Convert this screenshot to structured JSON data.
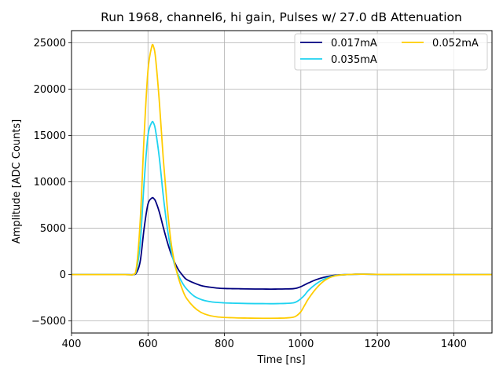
{
  "chart_data": {
    "type": "line",
    "title": "Run 1968, channel6, hi gain, Pulses w/ 27.0 dB Attenuation",
    "xlabel": "Time [ns]",
    "ylabel": "Amplitude [ADC Counts]",
    "xlim": [
      400,
      1500
    ],
    "ylim": [
      -6300,
      26300
    ],
    "xticks": [
      400,
      600,
      800,
      1000,
      1200,
      1400
    ],
    "yticks": [
      -5000,
      0,
      5000,
      10000,
      15000,
      20000,
      25000
    ],
    "ytick_labels": [
      "−5000",
      "0",
      "5000",
      "10000",
      "15000",
      "20000",
      "25000"
    ],
    "grid": true,
    "legend": {
      "placement": "top-right",
      "columns": 2
    },
    "series": [
      {
        "name": "0.017mA",
        "color": "#00007f",
        "x": [
          400,
          540,
          560,
          570,
          580,
          590,
          600,
          610,
          615,
          620,
          630,
          640,
          650,
          660,
          670,
          680,
          690,
          700,
          720,
          740,
          760,
          780,
          800,
          820,
          840,
          860,
          880,
          900,
          920,
          940,
          960,
          980,
          990,
          1000,
          1010,
          1020,
          1040,
          1060,
          1080,
          1100,
          1120,
          1140,
          1160,
          1200,
          1300,
          1400,
          1500
        ],
        "y": [
          0,
          0,
          0,
          200,
          1500,
          5000,
          7600,
          8250,
          8200,
          7900,
          6700,
          5100,
          3600,
          2300,
          1300,
          500,
          -50,
          -500,
          -900,
          -1200,
          -1350,
          -1450,
          -1500,
          -1520,
          -1530,
          -1550,
          -1560,
          -1560,
          -1570,
          -1560,
          -1550,
          -1520,
          -1450,
          -1300,
          -1100,
          -900,
          -550,
          -300,
          -130,
          -40,
          0,
          30,
          40,
          20,
          0,
          0,
          0
        ]
      },
      {
        "name": "0.035mA",
        "color": "#1fd3f0",
        "x": [
          400,
          540,
          560,
          570,
          580,
          590,
          600,
          610,
          615,
          620,
          630,
          640,
          650,
          660,
          670,
          680,
          690,
          700,
          720,
          740,
          760,
          780,
          800,
          820,
          840,
          860,
          880,
          900,
          920,
          940,
          960,
          980,
          990,
          1000,
          1010,
          1020,
          1040,
          1060,
          1080,
          1100,
          1120,
          1140,
          1160,
          1200,
          1300,
          1400,
          1500
        ],
        "y": [
          0,
          0,
          0,
          500,
          3500,
          10000,
          15000,
          16400,
          16300,
          15500,
          12500,
          8500,
          5200,
          2700,
          1000,
          -100,
          -900,
          -1500,
          -2300,
          -2700,
          -2900,
          -3000,
          -3050,
          -3080,
          -3100,
          -3120,
          -3130,
          -3130,
          -3140,
          -3130,
          -3110,
          -3050,
          -2900,
          -2600,
          -2200,
          -1700,
          -1000,
          -500,
          -200,
          -60,
          0,
          30,
          40,
          20,
          0,
          0,
          0
        ]
      },
      {
        "name": "0.052mA",
        "color": "#ffcc00",
        "x": [
          400,
          540,
          560,
          570,
          580,
          590,
          600,
          610,
          615,
          620,
          630,
          640,
          650,
          660,
          670,
          680,
          690,
          700,
          720,
          740,
          760,
          780,
          800,
          820,
          840,
          860,
          880,
          900,
          920,
          940,
          960,
          980,
          990,
          1000,
          1010,
          1020,
          1040,
          1060,
          1080,
          1100,
          1120,
          1140,
          1160,
          1200,
          1300,
          1400,
          1500
        ],
        "y": [
          0,
          0,
          0,
          800,
          6000,
          15000,
          22000,
          24600,
          24500,
          23300,
          18500,
          12500,
          7500,
          3600,
          1200,
          -400,
          -1600,
          -2500,
          -3500,
          -4100,
          -4400,
          -4550,
          -4620,
          -4650,
          -4680,
          -4690,
          -4700,
          -4710,
          -4710,
          -4700,
          -4680,
          -4600,
          -4400,
          -4000,
          -3300,
          -2600,
          -1500,
          -700,
          -250,
          -60,
          0,
          30,
          40,
          20,
          0,
          0,
          0
        ]
      }
    ]
  }
}
